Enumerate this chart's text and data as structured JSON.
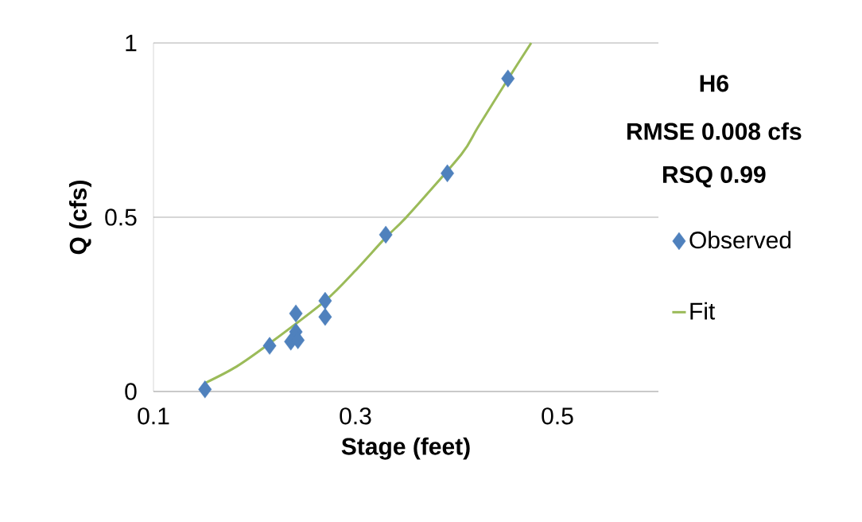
{
  "chart_data": {
    "type": "scatter",
    "xlabel": "Stage (feet)",
    "ylabel": "Q (cfs)",
    "annotations": [
      "H6",
      "RMSE 0.008 cfs",
      "RSQ 0.99"
    ],
    "series": [
      {
        "name": "Observed",
        "color": "#4f81bd",
        "marker": "diamond",
        "x": [
          0.151,
          0.215,
          0.241,
          0.241,
          0.236,
          0.243,
          0.27,
          0.27,
          0.33,
          0.391,
          0.451
        ],
        "values": [
          0.006,
          0.131,
          0.224,
          0.171,
          0.143,
          0.147,
          0.26,
          0.214,
          0.45,
          0.626,
          0.898
        ]
      },
      {
        "name": "Fit",
        "type": "line",
        "color": "#9bbb59",
        "marker": "none",
        "line_style": "solid",
        "x": [
          0.151,
          0.182,
          0.215,
          0.27,
          0.3,
          0.33,
          0.351,
          0.405,
          0.421,
          0.451,
          0.474
        ],
        "values": [
          0.024,
          0.071,
          0.138,
          0.26,
          0.347,
          0.442,
          0.502,
          0.681,
          0.757,
          0.896,
          1.0
        ]
      }
    ],
    "xlim": [
      0.1,
      0.6
    ],
    "xticks": [
      0.1,
      0.3,
      0.5
    ],
    "ylim": [
      0,
      1
    ],
    "yticks": [
      0,
      0.5,
      1
    ],
    "grid": "y",
    "legend": "right"
  }
}
